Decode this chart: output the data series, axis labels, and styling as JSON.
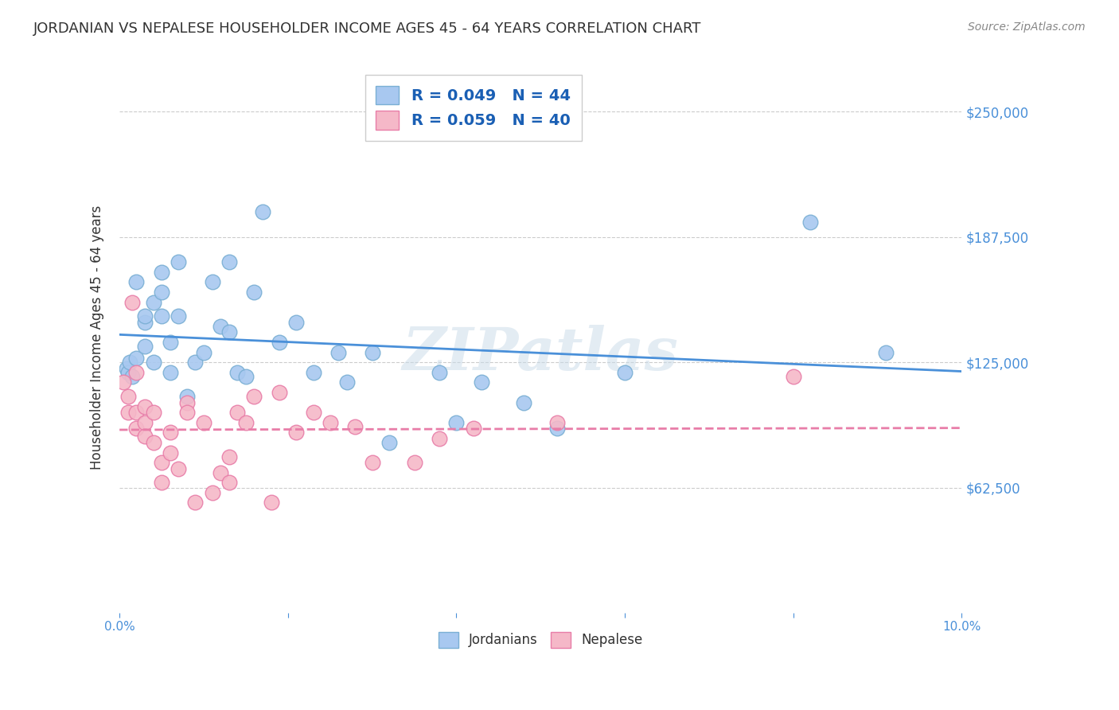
{
  "title": "JORDANIAN VS NEPALESE HOUSEHOLDER INCOME AGES 45 - 64 YEARS CORRELATION CHART",
  "source": "Source: ZipAtlas.com",
  "ylabel": "Householder Income Ages 45 - 64 years",
  "ytick_labels": [
    "$62,500",
    "$125,000",
    "$187,500",
    "$250,000"
  ],
  "ytick_values": [
    62500,
    125000,
    187500,
    250000
  ],
  "legend_entries": [
    {
      "label": "R = 0.049   N = 44",
      "color": "#a8c8f0"
    },
    {
      "label": "R = 0.059   N = 40",
      "color": "#f5b8c8"
    }
  ],
  "legend_r_color": "#1a5fb4",
  "xmin": 0.0,
  "xmax": 0.1,
  "ymin": 0,
  "ymax": 275000,
  "background_color": "#ffffff",
  "grid_color": "#cccccc",
  "watermark": "ZIPatlas",
  "blue_line_color": "#4a90d9",
  "pink_line_color": "#e87da8",
  "blue_scatter_color": "#a8c8f0",
  "pink_scatter_color": "#f5b8c8",
  "blue_scatter_edge": "#7aafd4",
  "pink_scatter_edge": "#e87da8",
  "title_color": "#333333",
  "axis_label_color": "#333333",
  "tick_label_color": "#4a90d9",
  "jordanian_x": [
    0.0008,
    0.001,
    0.0012,
    0.0015,
    0.002,
    0.002,
    0.003,
    0.003,
    0.003,
    0.004,
    0.004,
    0.005,
    0.005,
    0.005,
    0.006,
    0.006,
    0.007,
    0.007,
    0.008,
    0.009,
    0.01,
    0.011,
    0.012,
    0.013,
    0.013,
    0.014,
    0.015,
    0.016,
    0.017,
    0.019,
    0.021,
    0.023,
    0.026,
    0.027,
    0.03,
    0.032,
    0.038,
    0.04,
    0.043,
    0.048,
    0.052,
    0.06,
    0.082,
    0.091
  ],
  "jordanian_y": [
    122000,
    120000,
    125000,
    118000,
    127000,
    165000,
    145000,
    133000,
    148000,
    155000,
    125000,
    170000,
    148000,
    160000,
    135000,
    120000,
    175000,
    148000,
    108000,
    125000,
    130000,
    165000,
    143000,
    175000,
    140000,
    120000,
    118000,
    160000,
    200000,
    135000,
    145000,
    120000,
    130000,
    115000,
    130000,
    85000,
    120000,
    95000,
    115000,
    105000,
    92000,
    120000,
    195000,
    130000
  ],
  "nepalese_x": [
    0.0005,
    0.001,
    0.001,
    0.0015,
    0.002,
    0.002,
    0.002,
    0.003,
    0.003,
    0.003,
    0.004,
    0.004,
    0.005,
    0.005,
    0.006,
    0.006,
    0.007,
    0.008,
    0.008,
    0.009,
    0.01,
    0.011,
    0.012,
    0.013,
    0.013,
    0.014,
    0.015,
    0.016,
    0.018,
    0.019,
    0.021,
    0.023,
    0.025,
    0.028,
    0.03,
    0.035,
    0.038,
    0.042,
    0.052,
    0.08
  ],
  "nepalese_y": [
    115000,
    108000,
    100000,
    155000,
    120000,
    100000,
    92000,
    103000,
    95000,
    88000,
    85000,
    100000,
    75000,
    65000,
    80000,
    90000,
    72000,
    105000,
    100000,
    55000,
    95000,
    60000,
    70000,
    78000,
    65000,
    100000,
    95000,
    108000,
    55000,
    110000,
    90000,
    100000,
    95000,
    93000,
    75000,
    75000,
    87000,
    92000,
    95000,
    118000
  ]
}
